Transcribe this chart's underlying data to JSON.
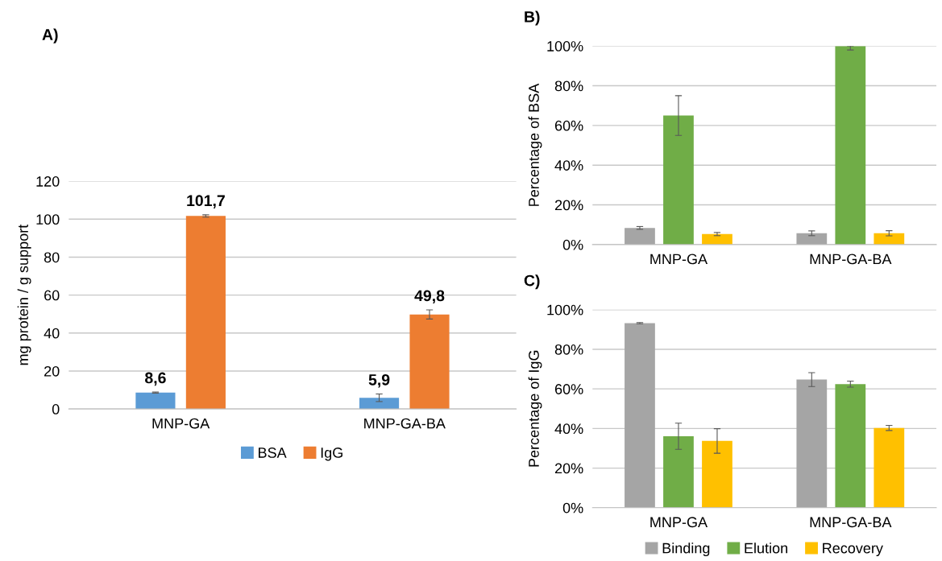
{
  "chart_data": [
    {
      "type": "bar",
      "title": "A)",
      "ylabel": "mg protein / g support",
      "categories": [
        "MNP-GA",
        "MNP-GA-BA"
      ],
      "ylim": [
        0,
        120
      ],
      "yticks": [
        0,
        20,
        40,
        60,
        80,
        100,
        120
      ],
      "grid": "y",
      "legend": "bottom",
      "series": [
        {
          "name": "BSA",
          "color": "#5b9bd5",
          "values": [
            8.6,
            5.9
          ],
          "errors": [
            0.3,
            2.0
          ],
          "value_labels": [
            "8,6",
            "5,9"
          ]
        },
        {
          "name": "IgG",
          "color": "#ed7d31",
          "values": [
            101.7,
            49.8
          ],
          "errors": [
            0.6,
            2.4
          ],
          "value_labels": [
            "101,7",
            "49,8"
          ]
        }
      ]
    },
    {
      "type": "bar",
      "title": "B)",
      "ylabel": "Percentage of BSA",
      "categories": [
        "MNP-GA",
        "MNP-GA-BA"
      ],
      "ylim": [
        0,
        100
      ],
      "grid": "y",
      "yticks": [
        {
          "value": 0,
          "label": "0%"
        },
        {
          "value": 20,
          "label": "20%"
        },
        {
          "value": 40,
          "label": "40%"
        },
        {
          "value": 60,
          "label": "60%"
        },
        {
          "value": 80,
          "label": "80%"
        },
        {
          "value": 100,
          "label": "100%"
        }
      ],
      "series": [
        {
          "color": "#a5a5a5",
          "values": [
            8.4,
            5.7
          ],
          "errors": [
            0.7,
            1.2
          ]
        },
        {
          "color": "#70ad47",
          "values": [
            65,
            100
          ],
          "errors": [
            10,
            [
              98,
              100
            ]
          ]
        },
        {
          "color": "#ffc000",
          "values": [
            5.3,
            5.7
          ],
          "errors": [
            0.8,
            1.3
          ]
        }
      ]
    },
    {
      "type": "bar",
      "title": "C)",
      "ylabel": "Percentage of IgG",
      "categories": [
        "MNP-GA",
        "MNP-GA-BA"
      ],
      "ylim": [
        0,
        100
      ],
      "grid": "y",
      "legend": "bottom",
      "yticks": [
        {
          "value": 0,
          "label": "0%"
        },
        {
          "value": 20,
          "label": "20%"
        },
        {
          "value": 40,
          "label": "40%"
        },
        {
          "value": 60,
          "label": "60%"
        },
        {
          "value": 80,
          "label": "80%"
        },
        {
          "value": 100,
          "label": "100%"
        }
      ],
      "series": [
        {
          "name": "Binding",
          "color": "#a5a5a5",
          "values": [
            93.2,
            64.7
          ],
          "errors": [
            0.3,
            3.5
          ]
        },
        {
          "name": "Elution",
          "color": "#70ad47",
          "values": [
            36.1,
            62.4
          ],
          "errors": [
            6.6,
            1.5
          ]
        },
        {
          "name": "Recovery",
          "color": "#ffc000",
          "values": [
            33.7,
            40.3
          ],
          "errors": [
            6.2,
            1.3
          ]
        }
      ]
    }
  ]
}
